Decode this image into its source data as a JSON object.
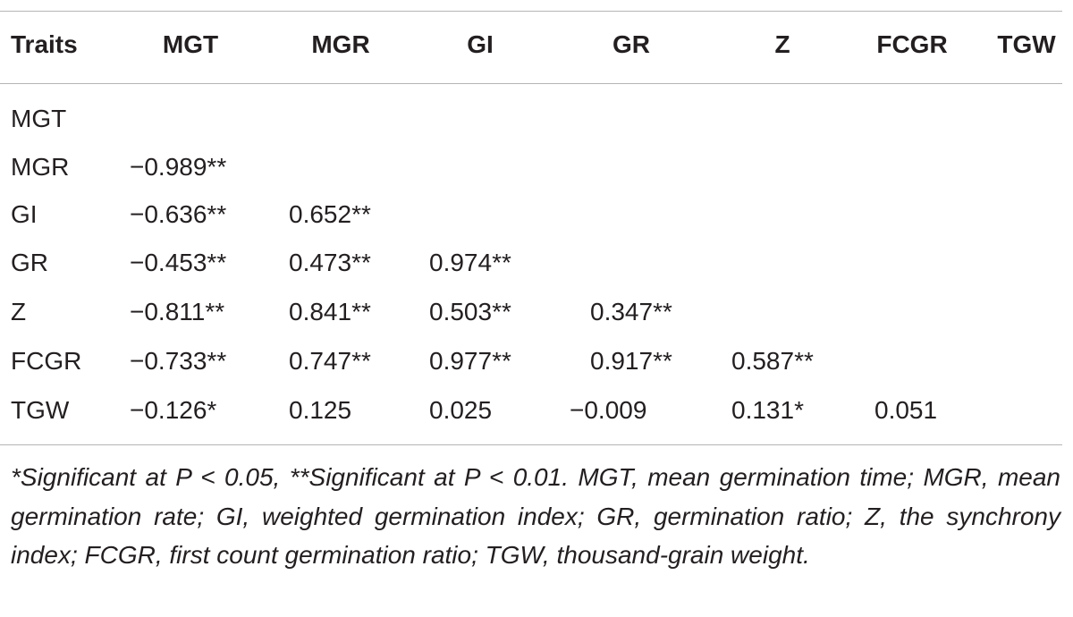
{
  "table": {
    "header": [
      "Traits",
      "MGT",
      "MGR",
      "GI",
      "GR",
      "Z",
      "FCGR",
      "TGW"
    ],
    "rows": [
      {
        "trait": "MGT",
        "values": []
      },
      {
        "trait": "MGR",
        "values": [
          "−0.989**"
        ]
      },
      {
        "trait": "GI",
        "values": [
          "−0.636**",
          "0.652**"
        ]
      },
      {
        "trait": "GR",
        "values": [
          "−0.453**",
          "0.473**",
          "0.974**"
        ]
      },
      {
        "trait": "Z",
        "values": [
          "−0.811**",
          "0.841**",
          "0.503**",
          "0.347**"
        ]
      },
      {
        "trait": "FCGR",
        "values": [
          "−0.733**",
          "0.747**",
          "0.977**",
          "0.917**",
          "0.587**"
        ]
      },
      {
        "trait": "TGW",
        "values": [
          "−0.126*",
          "0.125",
          "0.025",
          "−0.009",
          "0.131*",
          "0.051"
        ]
      }
    ],
    "footnote": "*Significant at P < 0.05, **Significant at P < 0.01. MGT, mean germination time; MGR, mean germination rate; GI, weighted germination index; GR, germination ratio; Z, the synchrony index; FCGR, first count germination ratio; TGW, thousand-grain weight."
  }
}
